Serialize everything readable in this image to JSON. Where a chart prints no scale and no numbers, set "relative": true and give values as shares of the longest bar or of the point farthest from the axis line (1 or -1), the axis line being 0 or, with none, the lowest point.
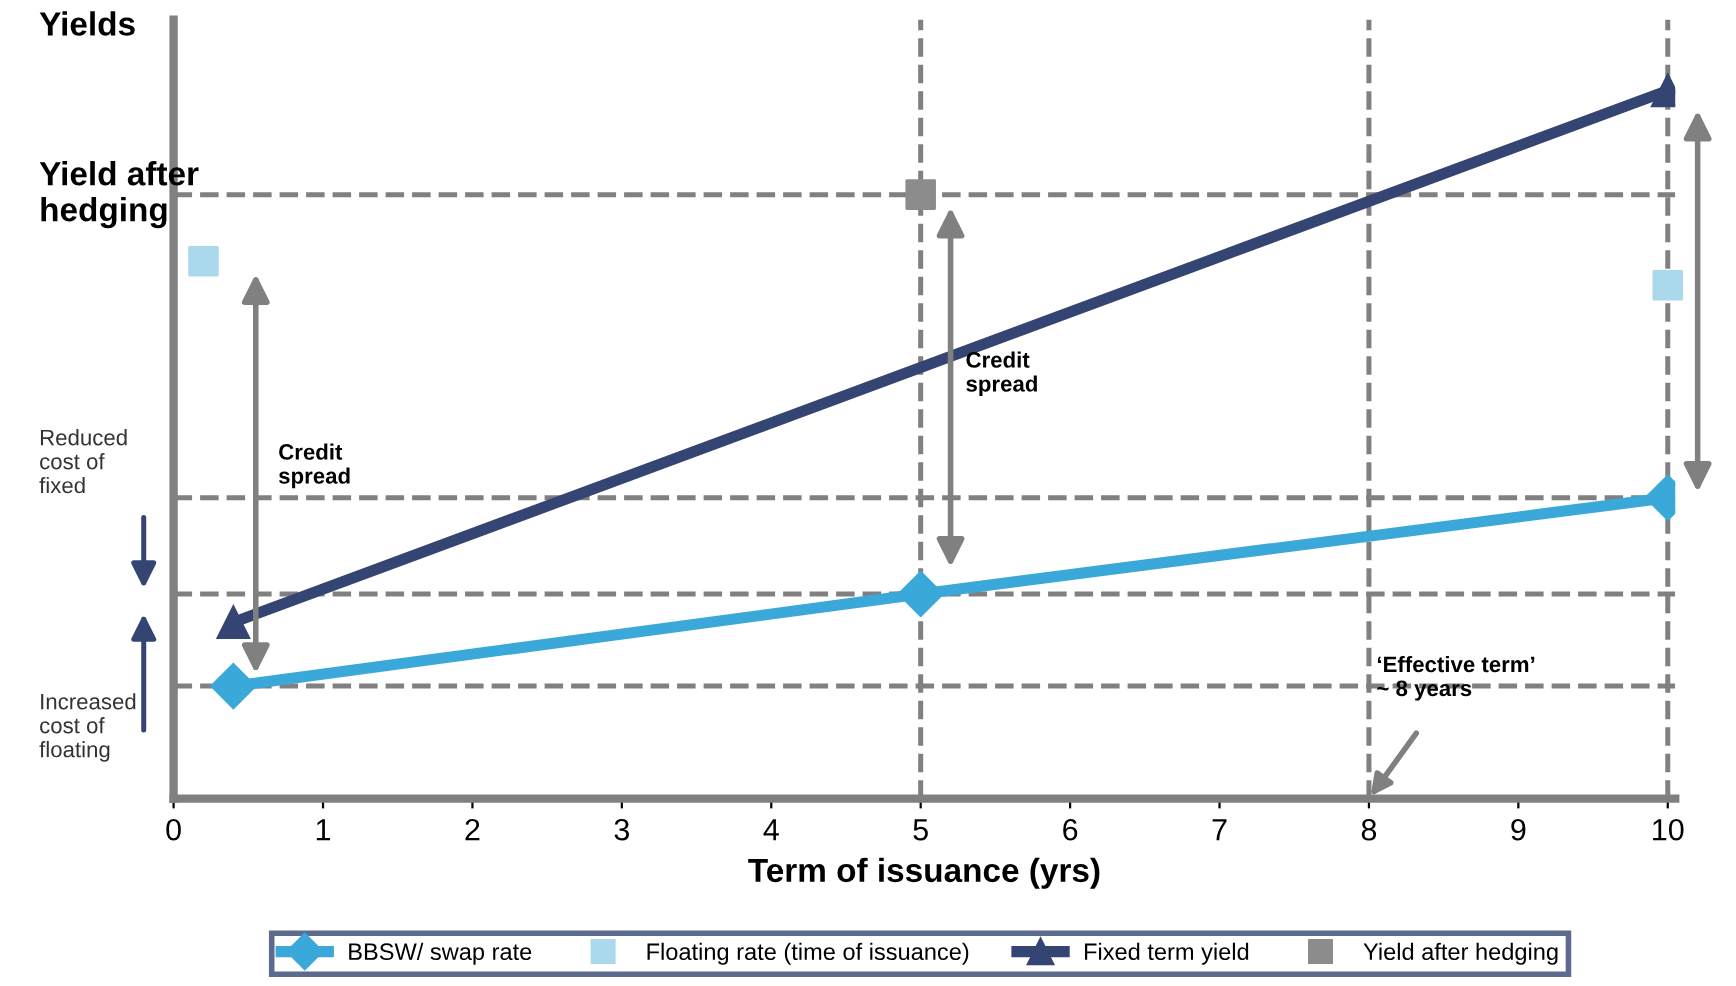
{
  "chart_data": {
    "type": "line",
    "relative": true,
    "ylabel": "Yields",
    "xlabel": "Term of issuance (yrs)",
    "xlim": [
      0,
      10.05
    ],
    "xticks": [
      0,
      1,
      2,
      3,
      4,
      5,
      6,
      7,
      8,
      9,
      10
    ],
    "series": [
      {
        "name": "BBSW/ swap rate",
        "color": "#3aa8d8",
        "marker": "diamond",
        "line_style": "solid",
        "x": [
          0.4,
          5,
          10
        ],
        "values": [
          0.159,
          0.289,
          0.425
        ]
      },
      {
        "name": "Floating rate (time of issuance)",
        "color": "#aad8ec",
        "type": "scatter",
        "marker": "square",
        "x": [
          0.2,
          10
        ],
        "values": [
          0.759,
          0.725
        ]
      },
      {
        "name": "Fixed term yield",
        "color": "#344573",
        "marker": "triangle",
        "line_style": "solid",
        "x": [
          0.4,
          10
        ],
        "values": [
          0.249,
          1.0
        ]
      },
      {
        "name": "Yield after hedging",
        "color": "#8c8c8c",
        "type": "scatter",
        "marker": "square",
        "x": [
          5
        ],
        "values": [
          0.853
        ]
      }
    ],
    "ref_lines": [
      {
        "axis": "y",
        "value": 0.853,
        "label": "Yield after hedging",
        "color": "#808080",
        "line_style": "dashed"
      },
      {
        "axis": "y",
        "value": 0.425,
        "label": "Reduced\ncost of\nfixed",
        "color": "#808080",
        "line_style": "dashed"
      },
      {
        "axis": "y",
        "value": 0.289,
        "label": null,
        "color": "#808080",
        "line_style": "dashed"
      },
      {
        "axis": "y",
        "value": 0.159,
        "label": "Increased\ncost of\nfloating",
        "color": "#808080",
        "line_style": "dashed"
      },
      {
        "axis": "x",
        "value": 5,
        "label": null,
        "color": "#808080",
        "line_style": "dashed"
      },
      {
        "axis": "x",
        "value": 8,
        "label": null,
        "color": "#808080",
        "line_style": "dashed"
      },
      {
        "axis": "x",
        "value": 10,
        "label": null,
        "color": "#808080",
        "line_style": "dashed"
      }
    ],
    "annotations": [
      "Credit\nspread",
      "Credit\nspread",
      "‘Effective term’\n~ 8 years"
    ],
    "legend": "bottom",
    "grid": false
  }
}
